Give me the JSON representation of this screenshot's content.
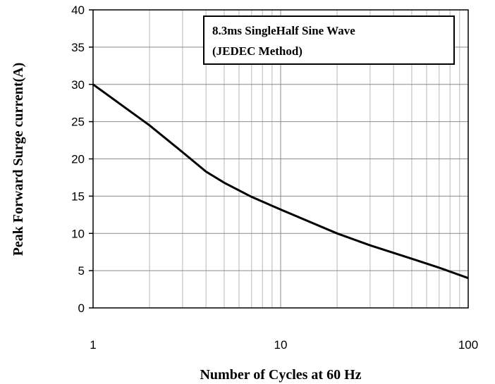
{
  "chart_data": {
    "type": "line",
    "x_scale": "log",
    "xlim": [
      1,
      100
    ],
    "ylim": [
      0,
      40
    ],
    "xlabel": "Number of Cycles at 60 Hz",
    "ylabel": "Peak Forward Surge current(A)",
    "x_ticks": [
      "1",
      "10",
      "100"
    ],
    "y_ticks": [
      "0",
      "5",
      "10",
      "15",
      "20",
      "25",
      "30",
      "35",
      "40"
    ],
    "grid": true,
    "annotation": [
      "8.3ms SingleHalf Sine Wave",
      "(JEDEC Method)"
    ],
    "series": [
      {
        "x": [
          1,
          2,
          3,
          4,
          5,
          7,
          10,
          20,
          30,
          50,
          70,
          100
        ],
        "y": [
          30,
          24.5,
          20.9,
          18.3,
          16.8,
          14.9,
          13.2,
          10.0,
          8.4,
          6.6,
          5.4,
          4.0
        ]
      }
    ],
    "line_color": "#000000"
  }
}
